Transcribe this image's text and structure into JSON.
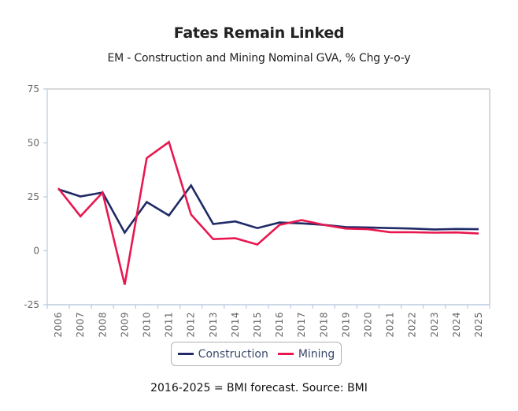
{
  "chart_data": {
    "type": "line",
    "title": "Fates Remain Linked",
    "subtitle": "EM - Construction and Mining Nominal GVA, % Chg y-o-y",
    "xlabel": "",
    "ylabel": "",
    "ylim": [
      -25,
      75
    ],
    "yticks": [
      -25,
      0,
      25,
      50,
      75
    ],
    "grid": false,
    "legend_position": "bottom",
    "categories": [
      "2006",
      "2007",
      "2008",
      "2009",
      "2010",
      "2011",
      "2012",
      "2013",
      "2014",
      "2015",
      "2016",
      "2017",
      "2018",
      "2019",
      "2020",
      "2021",
      "2022",
      "2023",
      "2024",
      "2025"
    ],
    "series": [
      {
        "name": "Construction",
        "color": "#1f2a66",
        "values": [
          28.5,
          25.2,
          27.0,
          8.4,
          22.6,
          16.4,
          30.3,
          12.4,
          13.6,
          10.5,
          13.1,
          12.7,
          12.0,
          11.0,
          10.8,
          10.5,
          10.3,
          9.9,
          10.1,
          10.0
        ]
      },
      {
        "name": "Mining",
        "color": "#e8174f",
        "values": [
          29.0,
          16.0,
          27.0,
          -15.7,
          43.0,
          50.4,
          16.8,
          5.4,
          5.8,
          2.9,
          12.0,
          14.2,
          12.0,
          10.3,
          10.0,
          8.6,
          8.6,
          8.4,
          8.5,
          8.0
        ]
      }
    ],
    "footnote": "2016-2025 = BMI forecast. Source: BMI"
  }
}
